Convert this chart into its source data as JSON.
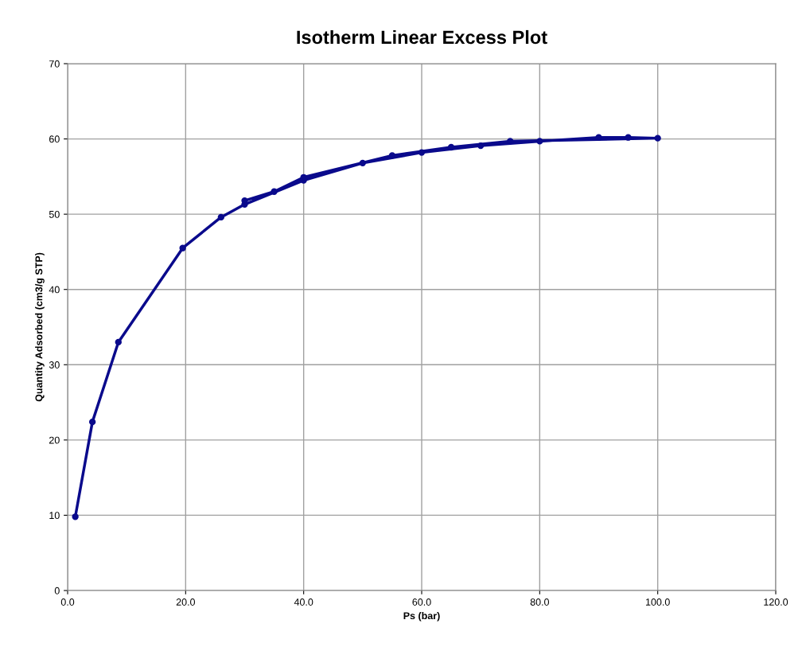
{
  "chart_data": {
    "type": "line",
    "title": "Isotherm Linear Excess Plot",
    "xlabel": "Ps (bar)",
    "ylabel": "Quantity Adsorbed (cm3/g STP)",
    "series": [
      {
        "color": "#0a0a8c",
        "x": [
          1.3,
          4.2,
          8.6,
          19.5,
          26.0,
          30.0,
          40.0,
          50.0,
          60.0,
          70.0,
          80.0,
          90.0,
          95.0,
          100.0,
          75.0,
          65.0,
          55.0,
          40.0,
          35.0,
          30.0
        ],
        "values": [
          9.8,
          22.4,
          33.0,
          45.5,
          49.6,
          51.3,
          54.5,
          56.8,
          58.2,
          59.1,
          59.7,
          60.2,
          60.2,
          60.1,
          59.7,
          58.9,
          57.8,
          54.9,
          53.0,
          51.8
        ]
      }
    ],
    "xlim": [
      0,
      120
    ],
    "xticks": [
      {
        "value": 0,
        "label": "0.0"
      },
      {
        "value": 20,
        "label": "20.0"
      },
      {
        "value": 40,
        "label": "40.0"
      },
      {
        "value": 60,
        "label": "60.0"
      },
      {
        "value": 80,
        "label": "80.0"
      },
      {
        "value": 100,
        "label": "100.0"
      },
      {
        "value": 120,
        "label": "120.0"
      }
    ],
    "ylim": [
      0,
      70
    ],
    "yticks": [
      0,
      10,
      20,
      30,
      40,
      50,
      60,
      70
    ],
    "grid": true,
    "marker": "circle",
    "line_style": "solid"
  }
}
